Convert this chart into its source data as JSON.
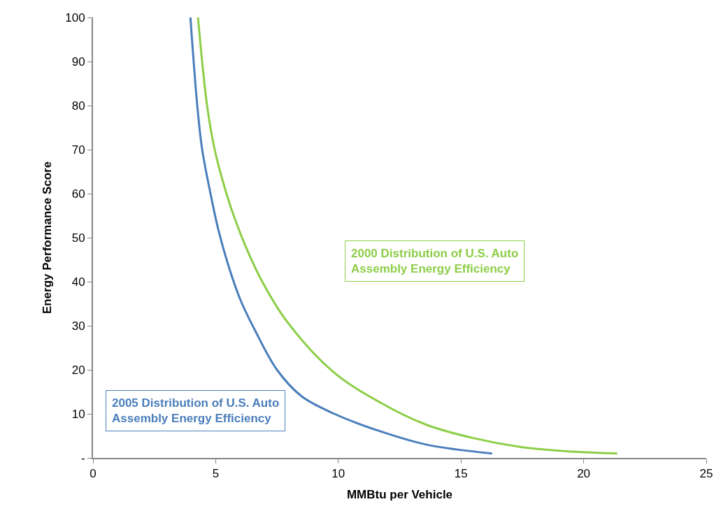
{
  "chart_data": {
    "type": "line",
    "xlabel": "MMBtu per Vehicle",
    "ylabel": "Energy Performance Score",
    "xlim": [
      0,
      25
    ],
    "xticks": [
      0,
      5,
      10,
      15,
      20,
      25
    ],
    "ylim": [
      0,
      100
    ],
    "yticks": [
      {
        "value": 0,
        "label": "-"
      },
      10,
      20,
      30,
      40,
      50,
      60,
      70,
      80,
      90,
      100
    ],
    "legend": false,
    "marker": "none",
    "line_style": "solid",
    "series": [
      {
        "name": "2005 Distribution of U.S. Auto Assembly Energy Efficiency",
        "color": "#4a7ebb",
        "x": [
          3.97,
          4.25,
          4.45,
          4.79,
          5.1,
          5.5,
          6.0,
          6.6,
          7.5,
          8.5,
          9.84,
          11.73,
          13.6,
          16.27
        ],
        "values": [
          100,
          80,
          70,
          60,
          52,
          44,
          36,
          29,
          20,
          14,
          10,
          6,
          3,
          1
        ]
      },
      {
        "name": "2000 Distribution of U.S. Auto Assembly Energy Efficiency",
        "color": "#8cce47",
        "x": [
          4.28,
          4.65,
          4.96,
          5.44,
          5.8,
          6.3,
          6.9,
          7.9,
          9.8,
          11.73,
          13.6,
          15.5,
          17.4,
          19.3,
          21.37
        ],
        "values": [
          100,
          80,
          70,
          60,
          54,
          47,
          40,
          31,
          19.5,
          12.5,
          7.5,
          4.5,
          2.5,
          1.5,
          1
        ]
      }
    ]
  }
}
